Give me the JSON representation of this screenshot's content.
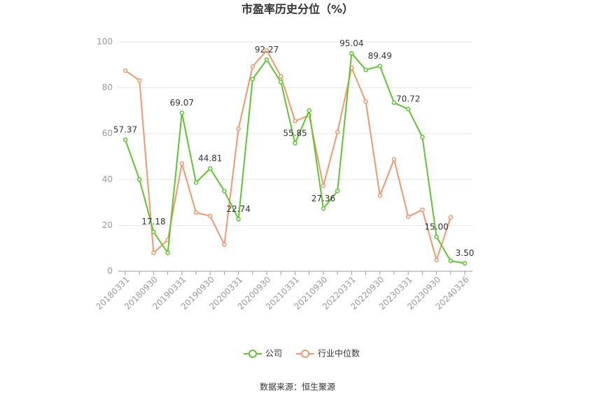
{
  "chart_data": {
    "type": "line",
    "title": "市盈率历史分位（%）",
    "source": "数据来源：恒生聚源",
    "categories": [
      "20180331",
      null,
      "20180930",
      null,
      "20190331",
      null,
      "20190930",
      null,
      "20200331",
      null,
      "20200930",
      null,
      "20210331",
      null,
      "20210930",
      null,
      "20220331",
      null,
      "20220930",
      null,
      "20230331",
      null,
      "20230930",
      null,
      "20240326"
    ],
    "series": [
      {
        "name": "公司",
        "color": "#5cc72e",
        "values": [
          57.37,
          40,
          17.18,
          8,
          69.07,
          38.7,
          44.81,
          35,
          22.74,
          83.8,
          92.27,
          82.5,
          55.85,
          70.1,
          27.36,
          35,
          95.04,
          87.8,
          89.49,
          73.5,
          70.72,
          58.5,
          15.0,
          4.5,
          3.5
        ],
        "value_labels": [
          "57.37",
          null,
          "17.18",
          null,
          "69.07",
          null,
          "44.81",
          null,
          "22.74",
          null,
          "92.27",
          null,
          "55.85",
          null,
          "27.36",
          null,
          "95.04",
          null,
          "89.49",
          null,
          "70.72",
          null,
          "15.00",
          null,
          "3.50"
        ]
      },
      {
        "name": "行业中位数",
        "color": "#f4976c",
        "values": [
          87.5,
          83.2,
          8,
          13.7,
          47,
          25.6,
          24.1,
          11.6,
          62.2,
          89.3,
          96.3,
          85,
          65.5,
          68,
          37.2,
          60.7,
          88.7,
          74,
          33,
          48.8,
          23.8,
          26.8,
          4.9,
          23.5,
          null
        ]
      }
    ],
    "ylim": [
      0,
      100
    ],
    "yticks": [
      0,
      20,
      40,
      60,
      80,
      100
    ],
    "grid": true,
    "legend": "bottom"
  }
}
